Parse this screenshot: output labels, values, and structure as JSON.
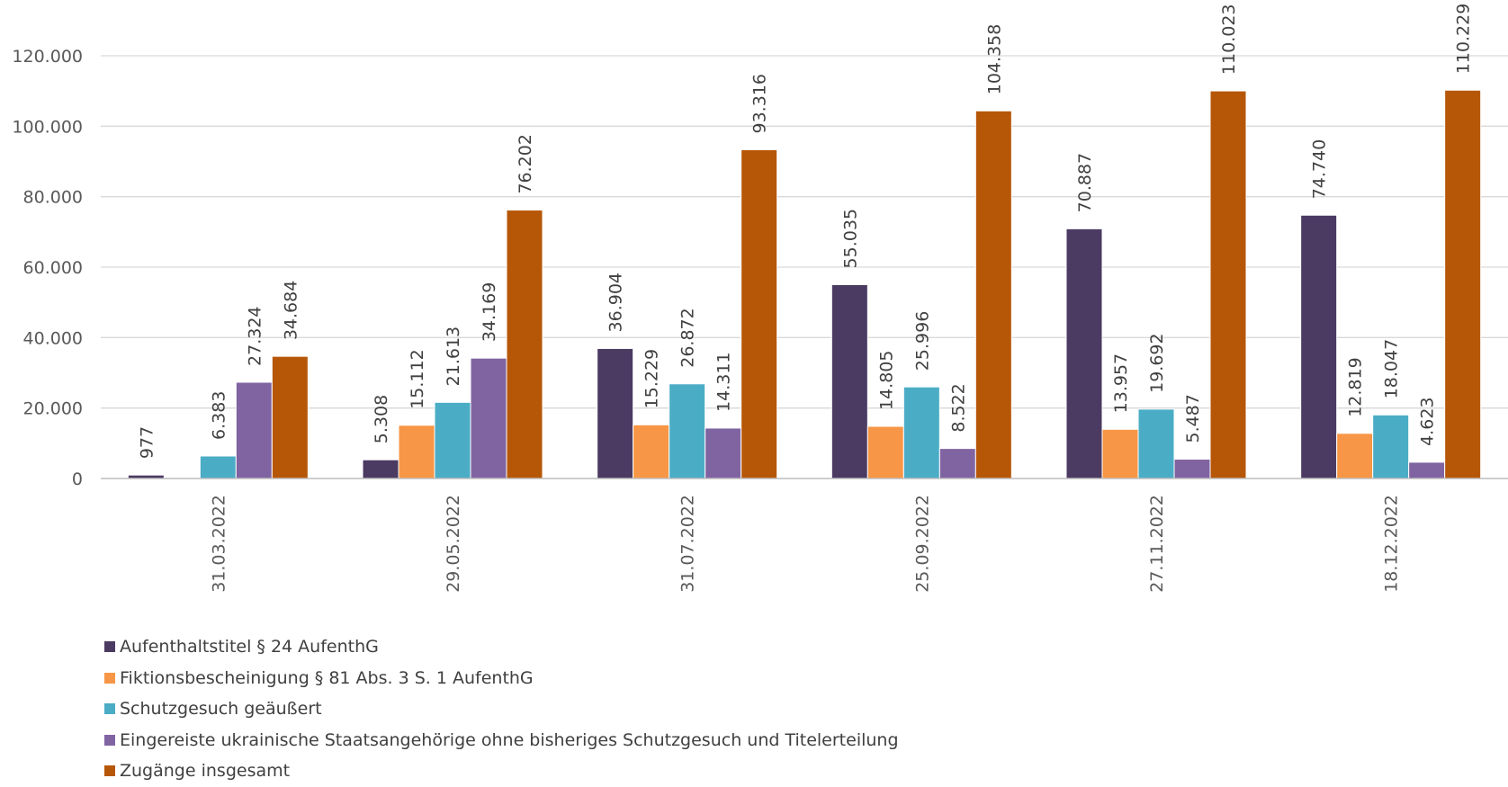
{
  "chart_data": {
    "type": "bar",
    "categories": [
      "31.03.2022",
      "29.05.2022",
      "31.07.2022",
      "25.09.2022",
      "27.11.2022",
      "18.12.2022"
    ],
    "series": [
      {
        "name": "Aufenthaltstitel § 24 AufenthG",
        "color": "#4B3A62",
        "values": [
          977,
          5308,
          36904,
          55035,
          70887,
          74740
        ],
        "labels": [
          "977",
          "5.308",
          "36.904",
          "55.035",
          "70.887",
          "74.740"
        ]
      },
      {
        "name": "Fiktionsbescheinigung § 81 Abs. 3 S. 1 AufenthG",
        "color": "#F79646",
        "values": [
          0,
          15112,
          15229,
          14805,
          13957,
          12819
        ],
        "labels": [
          "",
          "15.112",
          "15.229",
          "14.805",
          "13.957",
          "12.819"
        ]
      },
      {
        "name": "Schutzgesuch geäußert",
        "color": "#4BACC6",
        "values": [
          6383,
          21613,
          26872,
          25996,
          19692,
          18047
        ],
        "labels": [
          "6.383",
          "21.613",
          "26.872",
          "25.996",
          "19.692",
          "18.047"
        ]
      },
      {
        "name": "Eingereiste ukrainische Staatsangehörige ohne bisheriges Schutzgesuch und Titelerteilung",
        "color": "#8064A2",
        "values": [
          27324,
          34169,
          14311,
          8522,
          5487,
          4623
        ],
        "labels": [
          "27.324",
          "34.169",
          "14.311",
          "8.522",
          "5.487",
          "4.623"
        ]
      },
      {
        "name": "Zugänge insgesamt",
        "color": "#B65708",
        "values": [
          34684,
          76202,
          93316,
          104358,
          110023,
          110229
        ],
        "labels": [
          "34.684",
          "76.202",
          "93.316",
          "104.358",
          "110.023",
          "110.229"
        ]
      }
    ],
    "y_ticks": [
      0,
      20000,
      40000,
      60000,
      80000,
      100000,
      120000
    ],
    "y_tick_labels": [
      "0",
      "20.000",
      "40.000",
      "60.000",
      "80.000",
      "100.000",
      "120.000"
    ],
    "ylim": [
      0,
      120000
    ],
    "grid": true,
    "legend_position": "bottom-left",
    "title": "",
    "xlabel": "",
    "ylabel": ""
  }
}
